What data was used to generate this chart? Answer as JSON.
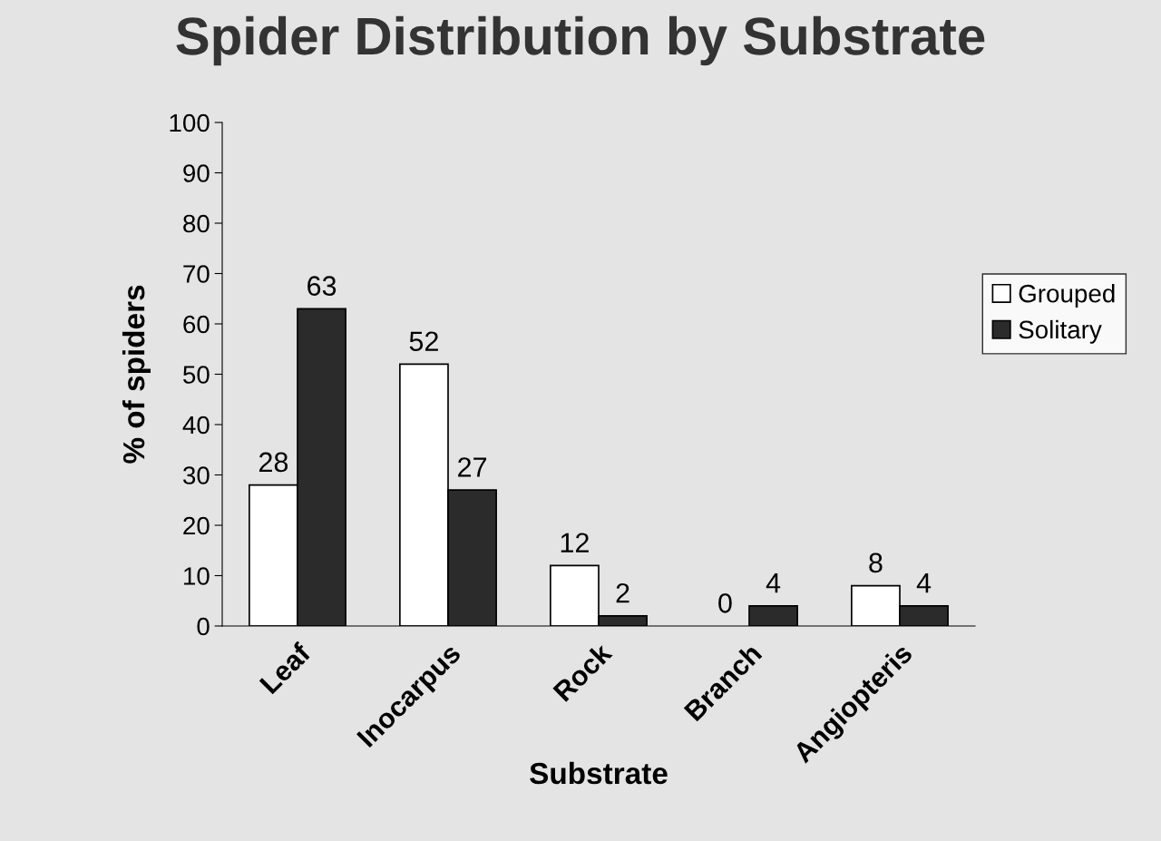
{
  "chart_data": {
    "type": "bar",
    "title": "Spider Distribution by Substrate",
    "xlabel": "Substrate",
    "ylabel": "% of spiders",
    "categories": [
      "Leaf",
      "Inocarpus",
      "Rock",
      "Branch",
      "Angiopteris"
    ],
    "series": [
      {
        "name": "Grouped",
        "color": "#ffffff",
        "values": [
          28,
          52,
          12,
          0,
          8
        ]
      },
      {
        "name": "Solitary",
        "color": "#2b2b2b",
        "values": [
          63,
          27,
          2,
          4,
          4
        ]
      }
    ],
    "ylim": [
      0,
      100
    ],
    "yticks": [
      0,
      10,
      20,
      30,
      40,
      50,
      60,
      70,
      80,
      90,
      100
    ],
    "data_labels": true,
    "legend": "right",
    "grid": false
  }
}
